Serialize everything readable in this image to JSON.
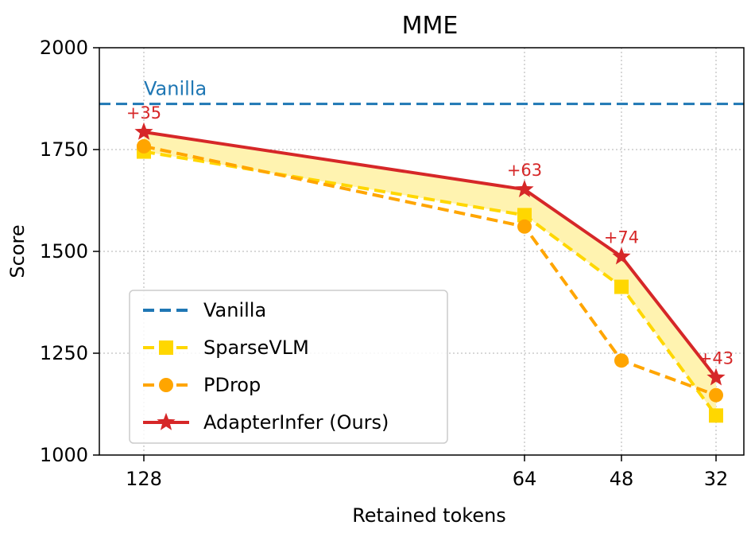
{
  "chart_data": {
    "type": "line",
    "title": "MME",
    "xlabel": "Retained tokens",
    "ylabel": "Score",
    "categories": [
      "128",
      "64",
      "48",
      "32"
    ],
    "ylim": [
      1000,
      2000
    ],
    "yticks": [
      "1000",
      "1250",
      "1500",
      "1750",
      "2000"
    ],
    "grid": true,
    "legend_position": "lower-left",
    "baseline": {
      "name": "Vanilla",
      "value": 1862,
      "label": "Vanilla",
      "color": "#1f77b4",
      "style": "dashed"
    },
    "series": [
      {
        "name": "SparseVLM",
        "values": [
          1745,
          1589,
          1413,
          1097
        ],
        "color": "#ffd700",
        "marker": "square",
        "style": "dashed"
      },
      {
        "name": "PDrop",
        "values": [
          1758,
          1561,
          1232,
          1147
        ],
        "color": "#ffa500",
        "marker": "circle",
        "style": "dashed"
      },
      {
        "name": "AdapterInfer (Ours)",
        "values": [
          1793,
          1652,
          1487,
          1190
        ],
        "color": "#d62728",
        "marker": "star",
        "style": "solid"
      }
    ],
    "annotations": [
      "+35",
      "+63",
      "+74",
      "+43"
    ],
    "fill_between": {
      "upper": "AdapterInfer (Ours)",
      "lower": "SparseVLM",
      "color": "#fff3b0"
    }
  }
}
